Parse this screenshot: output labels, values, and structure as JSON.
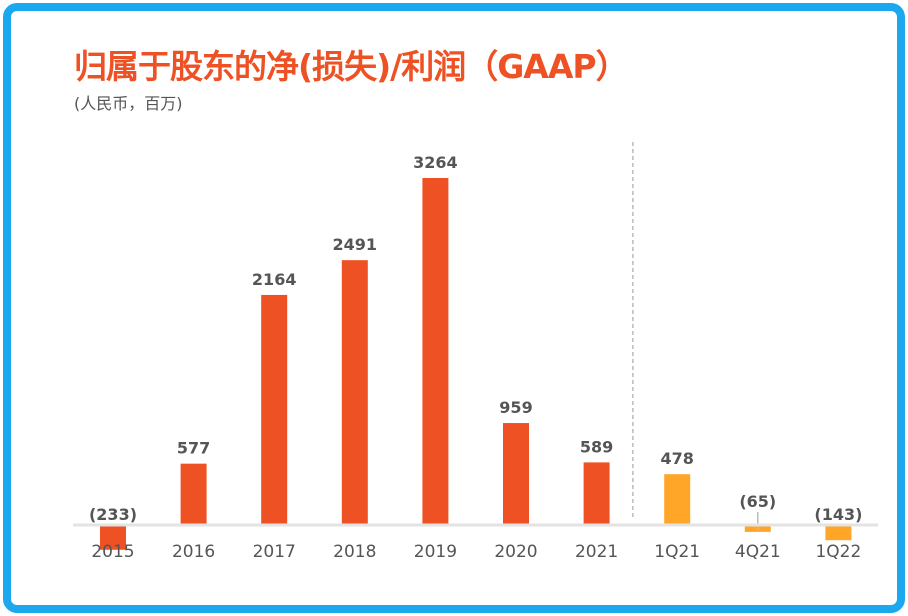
{
  "chart_data": {
    "type": "bar",
    "title": "归属于股东的净(损失)/利润（GAAP）",
    "subtitle": "(人民币，百万)",
    "categories": [
      "2015",
      "2016",
      "2017",
      "2018",
      "2019",
      "2020",
      "2021",
      "1Q21",
      "4Q21",
      "1Q22"
    ],
    "values": [
      -233,
      577,
      2164,
      2491,
      3264,
      959,
      589,
      478,
      -65,
      -143
    ],
    "value_labels": [
      "(233)",
      "577",
      "2164",
      "2491",
      "3264",
      "959",
      "589",
      "478",
      "(65)",
      "(143)"
    ],
    "annual_color": "#ee5224",
    "quarterly_color": "#ffa628",
    "quarterly_start_index": 7,
    "xlabel": "",
    "ylabel": "",
    "grid": false
  }
}
